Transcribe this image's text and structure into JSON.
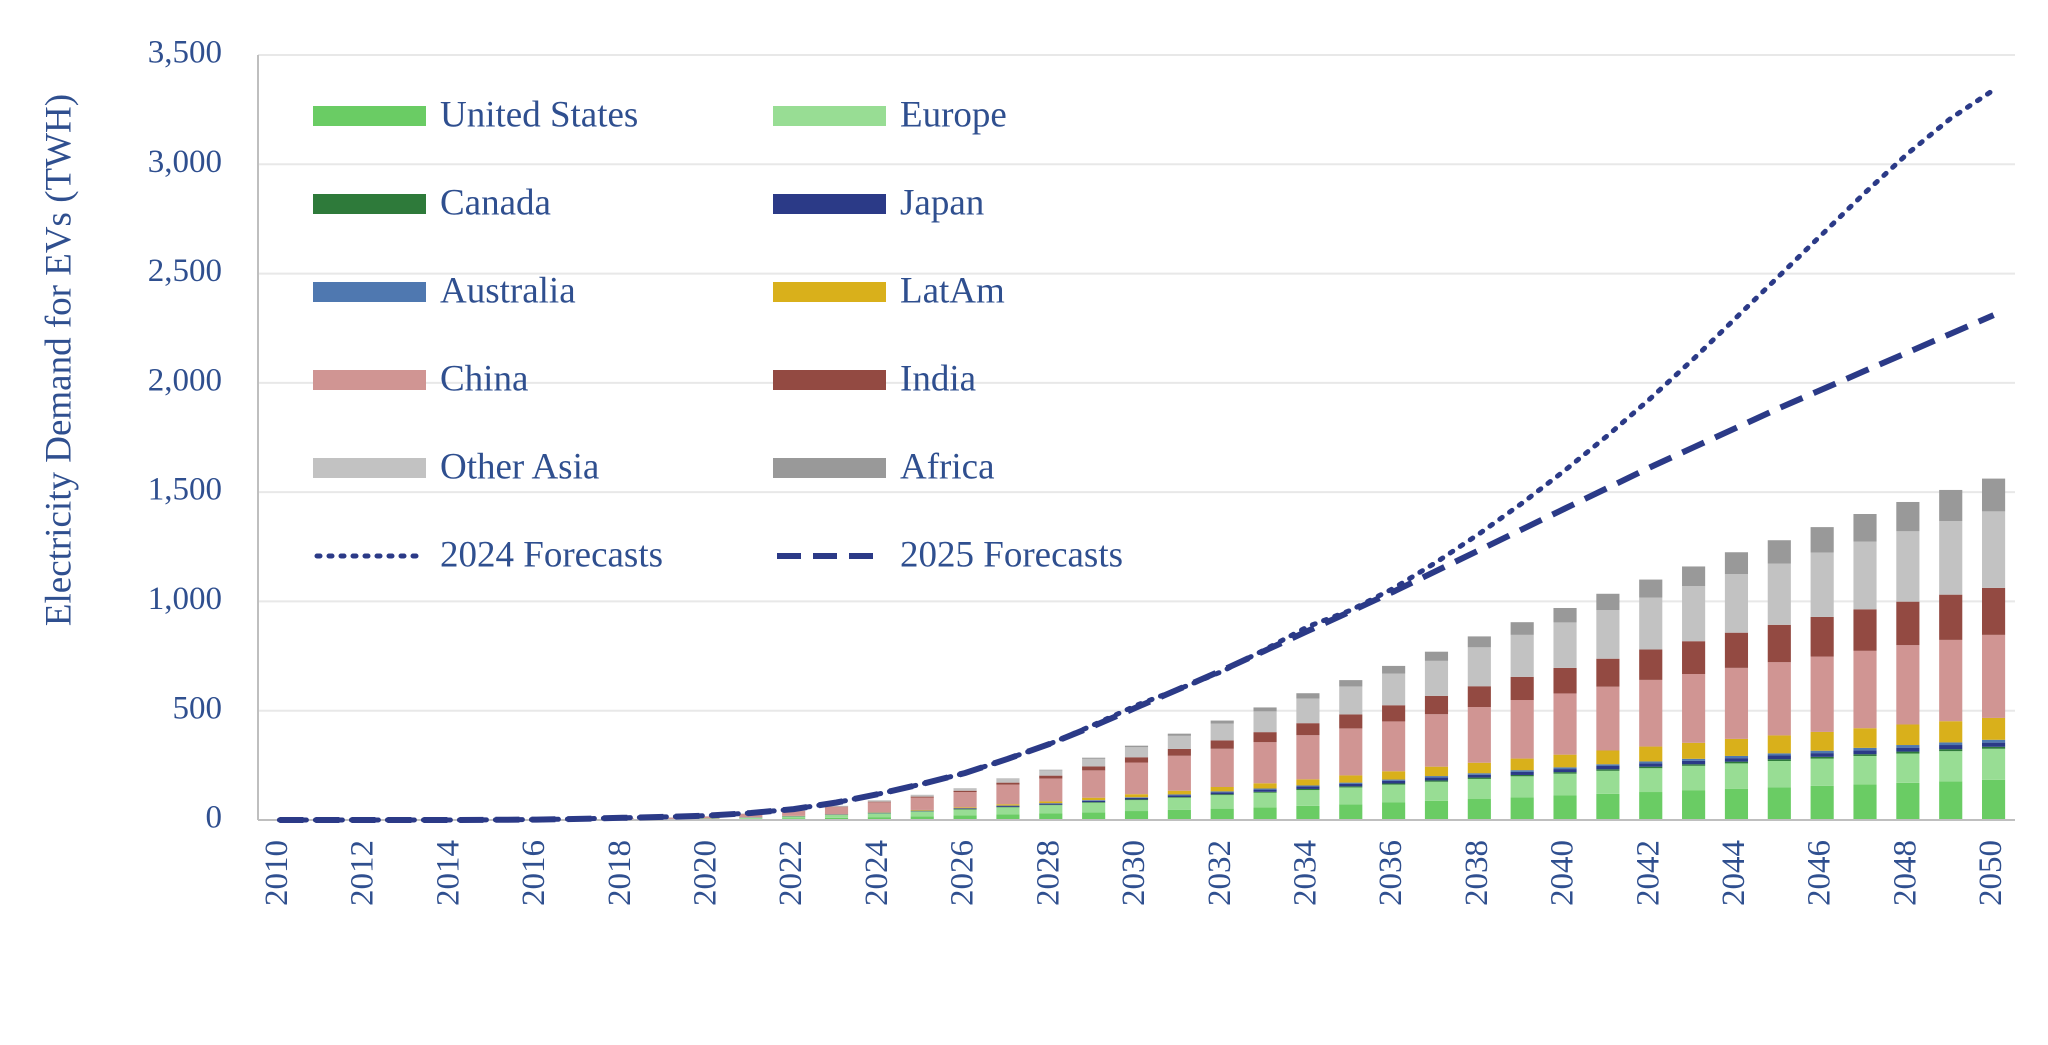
{
  "chart_data": {
    "type": "bar",
    "stacked": true,
    "y_label": "Electricity Demand for EVs (TWH)",
    "categories": [
      "2010",
      null,
      "2012",
      null,
      "2014",
      null,
      "2016",
      null,
      "2018",
      null,
      "2020",
      null,
      "2022",
      null,
      "2024",
      null,
      "2026",
      null,
      "2028",
      null,
      "2030",
      null,
      "2032",
      null,
      "2034",
      null,
      "2036",
      null,
      "2038",
      null,
      "2040",
      null,
      "2042",
      null,
      "2044",
      null,
      "2046",
      null,
      "2048",
      null,
      "2050"
    ],
    "ylim": [
      0,
      3500
    ],
    "yticks": [
      0,
      500,
      {
        "value": 1000,
        "label": "1,000"
      },
      {
        "value": 1500,
        "label": "1,500"
      },
      {
        "value": 2000,
        "label": "2,000"
      },
      {
        "value": 2500,
        "label": "2,500"
      },
      {
        "value": 3000,
        "label": "3,000"
      },
      {
        "value": 3500,
        "label": "3,500"
      }
    ],
    "grid": true,
    "legend": "upper left",
    "series": [
      {
        "name": "United States",
        "color": "#6acc64",
        "values": [
          0,
          0,
          0,
          0,
          1,
          1,
          1,
          1,
          2,
          2,
          3,
          5,
          7,
          10,
          13,
          17,
          21,
          25,
          30,
          35,
          41,
          46,
          52,
          58,
          65,
          72,
          80,
          88,
          96,
          104,
          112,
          120,
          128,
          135,
          142,
          149,
          156,
          163,
          170,
          177,
          184
        ]
      },
      {
        "name": "Europe",
        "color": "#98dd94",
        "values": [
          0,
          0,
          0,
          0,
          0,
          1,
          1,
          1,
          2,
          3,
          4,
          6,
          9,
          13,
          17,
          22,
          27,
          33,
          38,
          44,
          50,
          56,
          62,
          67,
          72,
          77,
          82,
          87,
          92,
          96,
          100,
          105,
          109,
          113,
          117,
          121,
          125,
          130,
          134,
          138,
          142
        ]
      },
      {
        "name": "Canada",
        "color": "#2e7a3a",
        "values": [
          0,
          0,
          0,
          0,
          0,
          0,
          0,
          0,
          0,
          0,
          0,
          0,
          1,
          1,
          1,
          1,
          2,
          2,
          2,
          3,
          3,
          3,
          4,
          4,
          5,
          5,
          5,
          6,
          6,
          6,
          7,
          7,
          7,
          7,
          8,
          8,
          8,
          8,
          9,
          9,
          9
        ]
      },
      {
        "name": "Japan",
        "color": "#2b3a87",
        "values": [
          0,
          0,
          0,
          0,
          0,
          0,
          0,
          0,
          0,
          0,
          0,
          1,
          1,
          1,
          2,
          2,
          3,
          4,
          5,
          6,
          7,
          8,
          9,
          10,
          11,
          11,
          12,
          13,
          13,
          14,
          14,
          15,
          15,
          16,
          16,
          17,
          17,
          18,
          18,
          19,
          19
        ]
      },
      {
        "name": "Australia",
        "color": "#4f78b0",
        "values": [
          0,
          0,
          0,
          0,
          0,
          0,
          0,
          0,
          0,
          0,
          0,
          0,
          0,
          1,
          1,
          1,
          1,
          2,
          2,
          3,
          3,
          4,
          4,
          5,
          5,
          6,
          6,
          7,
          7,
          8,
          8,
          8,
          9,
          9,
          10,
          10,
          11,
          11,
          12,
          12,
          13
        ]
      },
      {
        "name": "LatAm",
        "color": "#d9b01b",
        "values": [
          0,
          0,
          0,
          0,
          0,
          0,
          0,
          0,
          0,
          0,
          0,
          0,
          1,
          1,
          2,
          3,
          4,
          6,
          8,
          11,
          14,
          17,
          20,
          24,
          28,
          33,
          38,
          43,
          48,
          53,
          58,
          63,
          68,
          73,
          78,
          82,
          86,
          90,
          94,
          97,
          100
        ]
      },
      {
        "name": "China",
        "color": "#d09593",
        "values": [
          0,
          0,
          1,
          1,
          1,
          2,
          2,
          3,
          4,
          6,
          9,
          15,
          22,
          32,
          45,
          57,
          70,
          90,
          105,
          125,
          145,
          160,
          175,
          188,
          202,
          215,
          228,
          240,
          255,
          268,
          280,
          292,
          305,
          315,
          325,
          335,
          345,
          354,
          363,
          372,
          380
        ]
      },
      {
        "name": "India",
        "color": "#934a42",
        "values": [
          0,
          0,
          0,
          0,
          0,
          0,
          0,
          0,
          0,
          0,
          0,
          1,
          1,
          2,
          3,
          4,
          6,
          9,
          13,
          18,
          24,
          31,
          38,
          46,
          55,
          64,
          74,
          84,
          95,
          106,
          117,
          128,
          139,
          150,
          161,
          171,
          181,
          190,
          199,
          207,
          215
        ]
      },
      {
        "name": "Other Asia",
        "color": "#c2c2c2",
        "values": [
          0,
          0,
          0,
          0,
          0,
          0,
          0,
          0,
          0,
          1,
          1,
          2,
          3,
          4,
          5,
          7,
          10,
          17,
          24,
          35,
          46,
          60,
          77,
          95,
          113,
          128,
          145,
          160,
          178,
          192,
          208,
          222,
          238,
          252,
          268,
          280,
          295,
          310,
          322,
          337,
          350
        ]
      },
      {
        "name": "Africa",
        "color": "#999999",
        "values": [
          0,
          0,
          0,
          0,
          0,
          0,
          0,
          0,
          0,
          0,
          0,
          0,
          0,
          0,
          1,
          1,
          1,
          2,
          3,
          5,
          7,
          10,
          14,
          18,
          24,
          29,
          35,
          42,
          50,
          58,
          66,
          75,
          82,
          90,
          100,
          107,
          116,
          126,
          134,
          142,
          150
        ]
      },
      {
        "name": "2024 Forecasts",
        "color": "#2b3a87",
        "type": "line",
        "dash": "dotted",
        "values": [
          0,
          0,
          0,
          0,
          0,
          1,
          2,
          5,
          10,
          14,
          20,
          32,
          50,
          80,
          120,
          165,
          215,
          280,
          350,
          435,
          525,
          600,
          680,
          780,
          885,
          960,
          1060,
          1180,
          1310,
          1450,
          1600,
          1760,
          1930,
          2110,
          2300,
          2490,
          2680,
          2870,
          3050,
          3210,
          3340
        ]
      },
      {
        "name": "2025 Forecasts",
        "color": "#2b3a87",
        "type": "line",
        "dash": "dashed",
        "values": [
          0,
          0,
          0,
          0,
          0,
          1,
          2,
          5,
          10,
          14,
          20,
          32,
          50,
          80,
          120,
          165,
          215,
          280,
          350,
          430,
          515,
          600,
          685,
          775,
          865,
          955,
          1045,
          1140,
          1235,
          1330,
          1425,
          1520,
          1615,
          1705,
          1795,
          1885,
          1970,
          2055,
          2140,
          2225,
          2310
        ]
      }
    ]
  }
}
